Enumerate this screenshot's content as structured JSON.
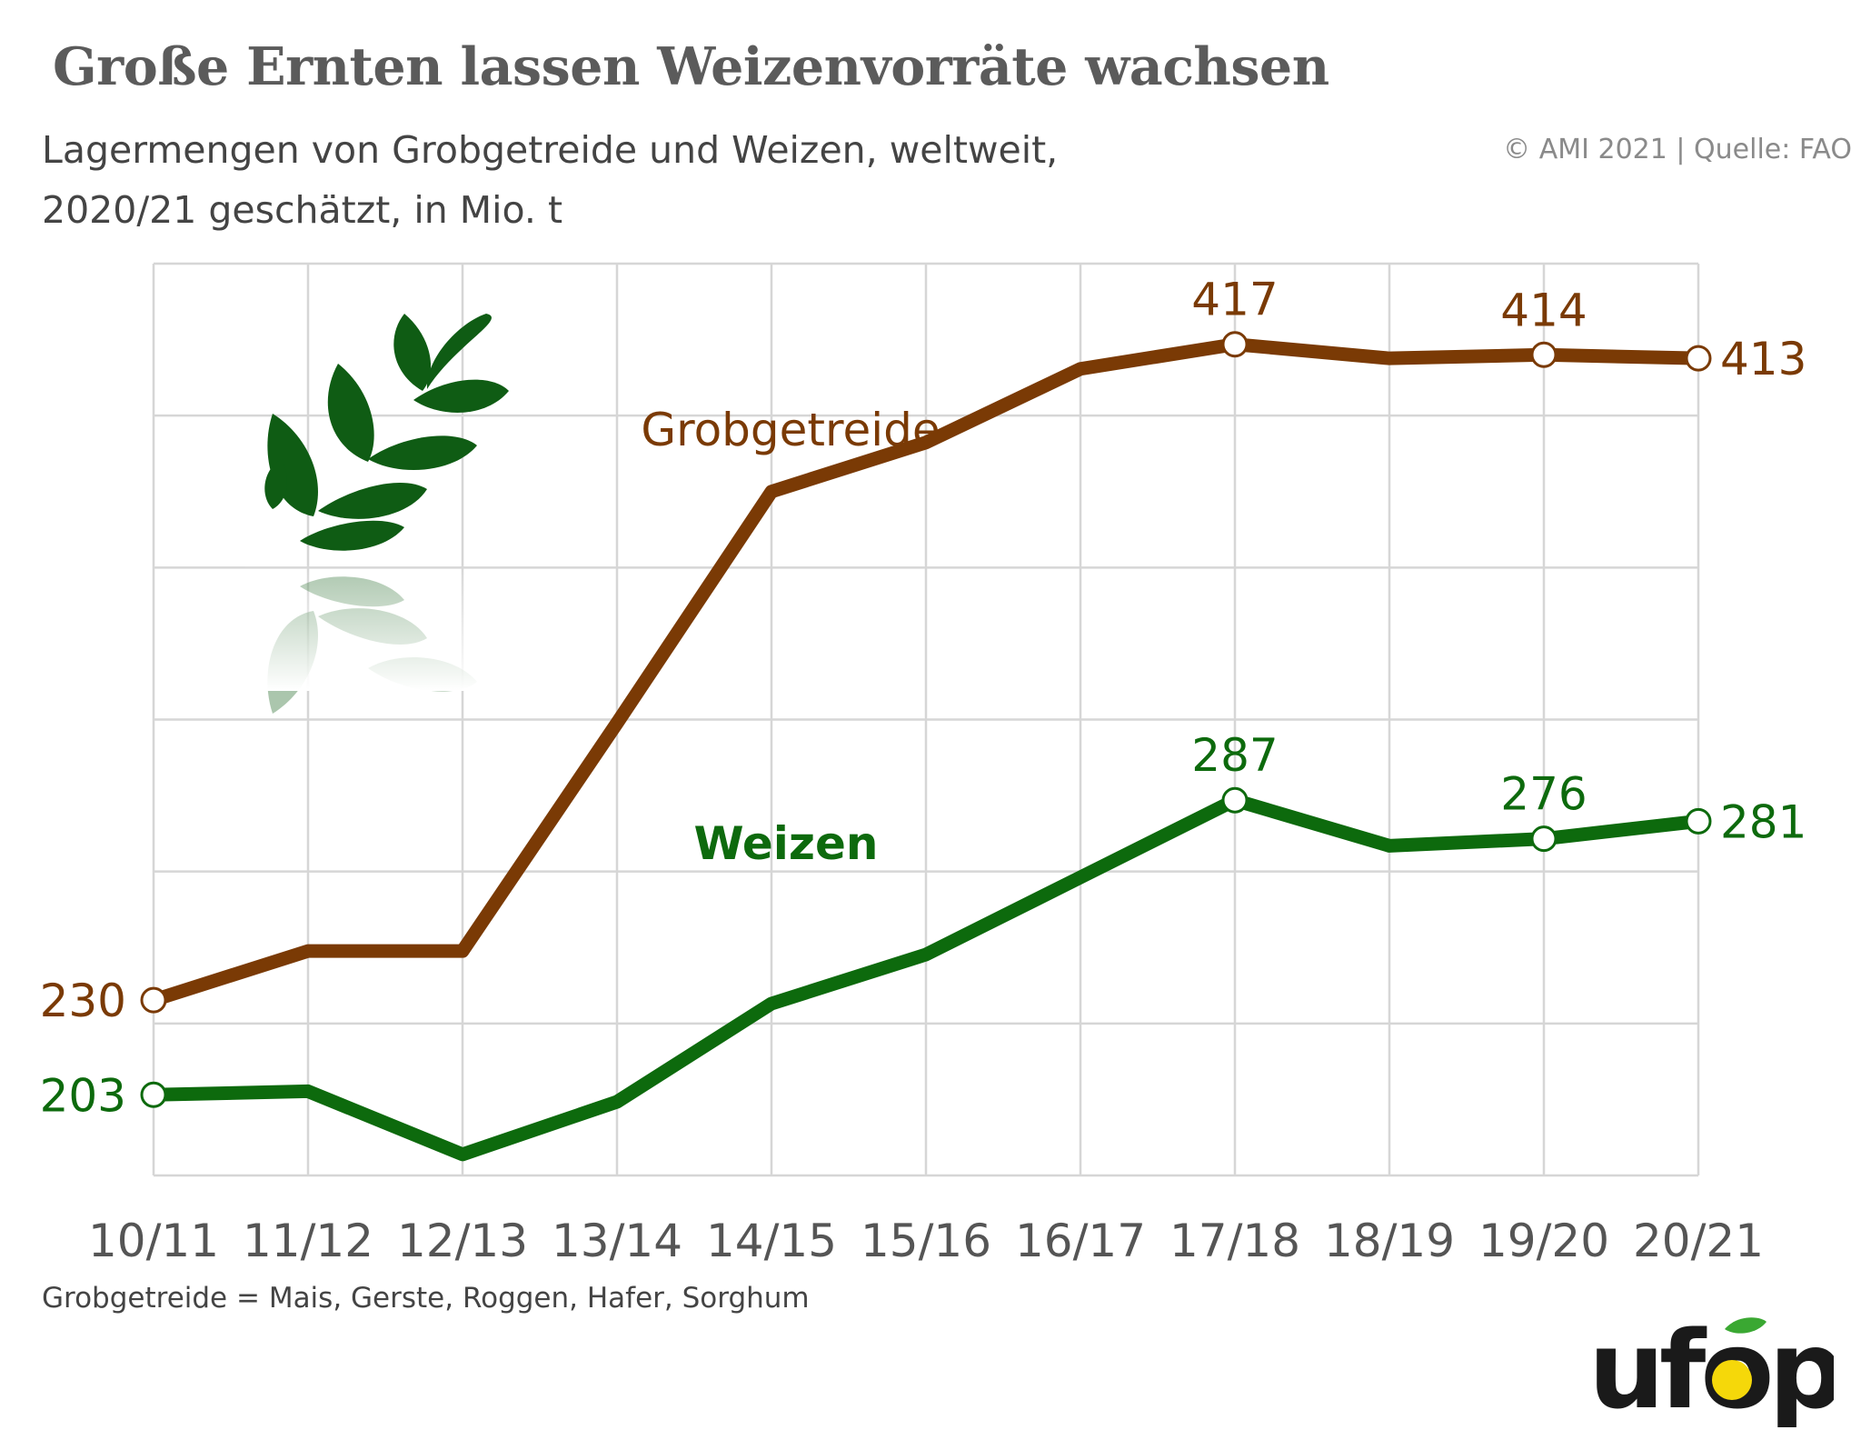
{
  "colors": {
    "grobgetreide": "#7a3a05",
    "weizen": "#0d6a0d",
    "grid": "#d6d6d6",
    "text": "#444444",
    "leaf": "#0f5c14",
    "logo_dark": "#1a1a1a",
    "logo_yellow": "#f5d80a",
    "logo_green": "#3aa832"
  },
  "title": "Große Ernten lassen Weizenvorräte wachsen",
  "subtitle_line1": "Lagermengen von Grobgetreide und Weizen, weltweit,",
  "subtitle_line2": "2020/21 geschätzt, in Mio. t",
  "source": "© AMI 2021 | Quelle: FAO",
  "footnote": "Grobgetreide = Mais, Gerste, Roggen, Hafer, Sorghum",
  "logo_text": "ufop",
  "decor_icon": "wheat-ear-icon",
  "chart_data": {
    "type": "line",
    "categories": [
      "10/11",
      "11/12",
      "12/13",
      "13/14",
      "14/15",
      "15/16",
      "16/17",
      "17/18",
      "18/19",
      "19/20",
      "20/21"
    ],
    "ylim": [
      180,
      440
    ],
    "grid": true,
    "legend": "inline labels",
    "series": [
      {
        "name": "Grobgetreide",
        "values": [
          230,
          244,
          244,
          309,
          375,
          389,
          410,
          417,
          413,
          414,
          413
        ],
        "point_labels": {
          "0": "230",
          "7": "417",
          "9": "414",
          "10": "413"
        }
      },
      {
        "name": "Weizen",
        "values": [
          203,
          204,
          186,
          201,
          229,
          243,
          265,
          287,
          274,
          276,
          281
        ],
        "point_labels": {
          "0": "203",
          "7": "287",
          "9": "276",
          "10": "281"
        }
      }
    ]
  }
}
